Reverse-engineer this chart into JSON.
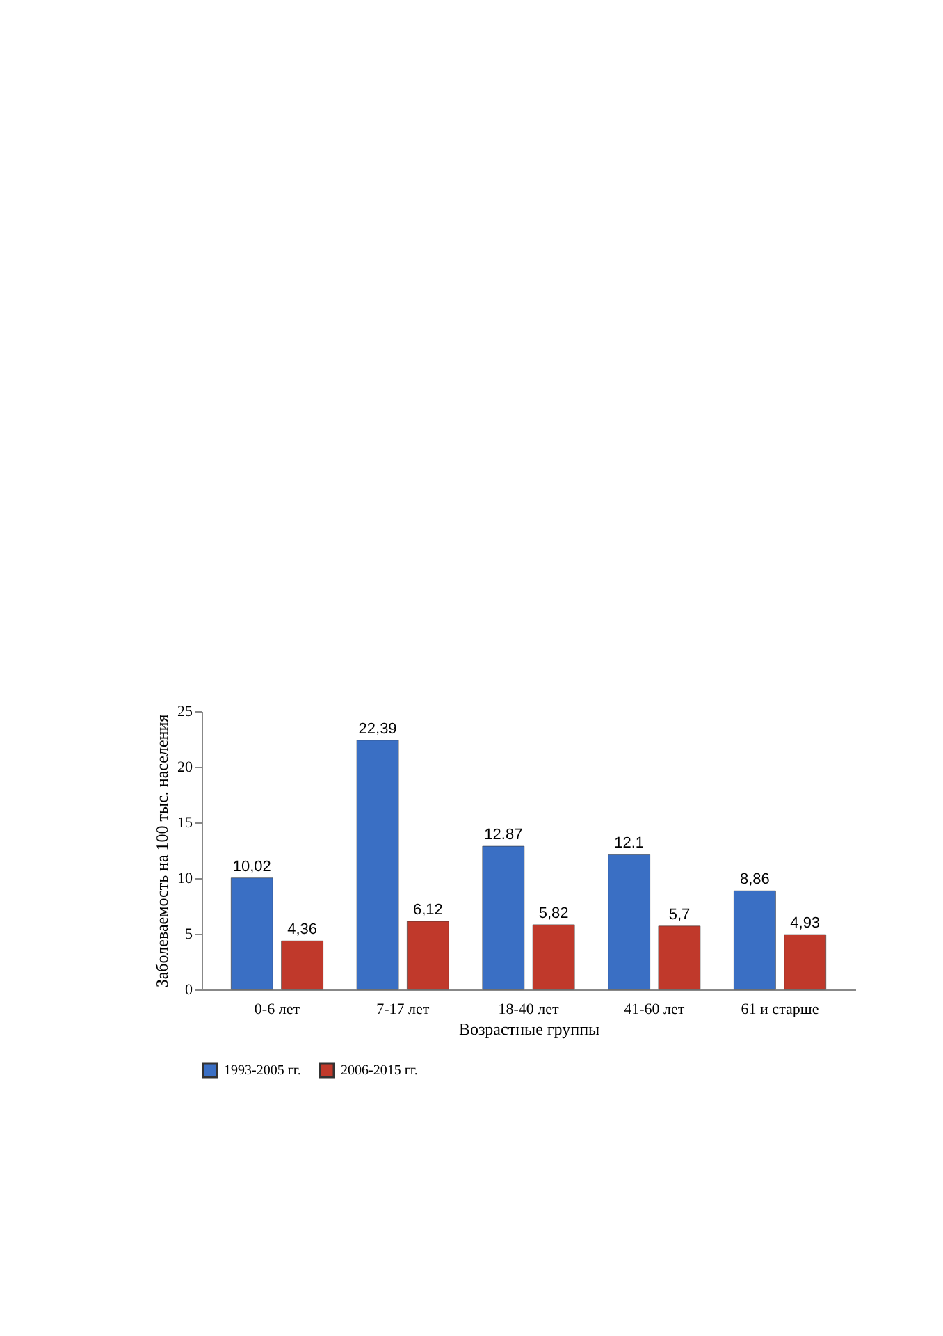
{
  "chart_data": {
    "type": "bar",
    "xlabel": "Возрастные группы",
    "ylabel": "Заболеваемость на 100 тыс. населения",
    "categories": [
      "0-6 лет",
      "7-17 лет",
      "18-40 лет",
      "41-60 лет",
      "61 и старше"
    ],
    "series": [
      {
        "name": "1993-2005 гг.",
        "color": "#3a6fc4",
        "values": [
          10.02,
          22.39,
          12.87,
          12.1,
          8.86
        ],
        "value_labels": [
          "10,02",
          "22,39",
          "12.87",
          "12.1",
          "8,86"
        ]
      },
      {
        "name": "2006-2015 гг.",
        "color": "#c0392b",
        "values": [
          4.36,
          6.12,
          5.82,
          5.7,
          4.93
        ],
        "value_labels": [
          "4,36",
          "6,12",
          "5,82",
          "5,7",
          "4,93"
        ]
      }
    ],
    "ylim": [
      0,
      25
    ],
    "yticks": [
      0,
      5,
      10,
      15,
      20,
      25
    ],
    "grid": false,
    "legend": "bottom"
  }
}
